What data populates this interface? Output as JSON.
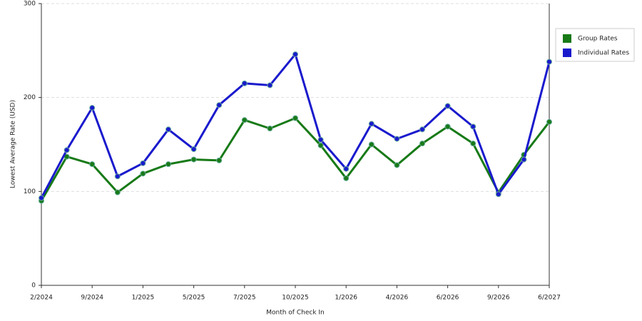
{
  "chart_data": {
    "type": "line",
    "x_label": "Month of Check In",
    "y_label": "Lowest Average Rate (USD)",
    "categories": [
      "2/2024",
      null,
      "9/2024",
      null,
      "1/2025",
      null,
      "5/2025",
      null,
      "7/2025",
      null,
      "10/2025",
      null,
      "1/2026",
      null,
      "4/2026",
      null,
      "6/2026",
      null,
      "9/2026",
      null,
      "6/2027"
    ],
    "series": [
      {
        "name": "Group Rates",
        "color": "#177a17",
        "values": [
          90,
          137,
          129,
          99,
          119,
          129,
          134,
          133,
          176,
          167,
          178,
          149,
          114,
          150,
          128,
          151,
          169,
          151,
          99,
          139,
          174
        ]
      },
      {
        "name": "Individual Rates",
        "color": "#1a1acd",
        "values": [
          93,
          144,
          189,
          116,
          130,
          166,
          145,
          192,
          215,
          213,
          246,
          155,
          124,
          172,
          156,
          166,
          191,
          169,
          97,
          134,
          238
        ]
      }
    ],
    "ylim": [
      0,
      300
    ],
    "yticks": [
      0,
      100,
      200,
      300
    ],
    "grid": true,
    "legend": "top-right"
  }
}
